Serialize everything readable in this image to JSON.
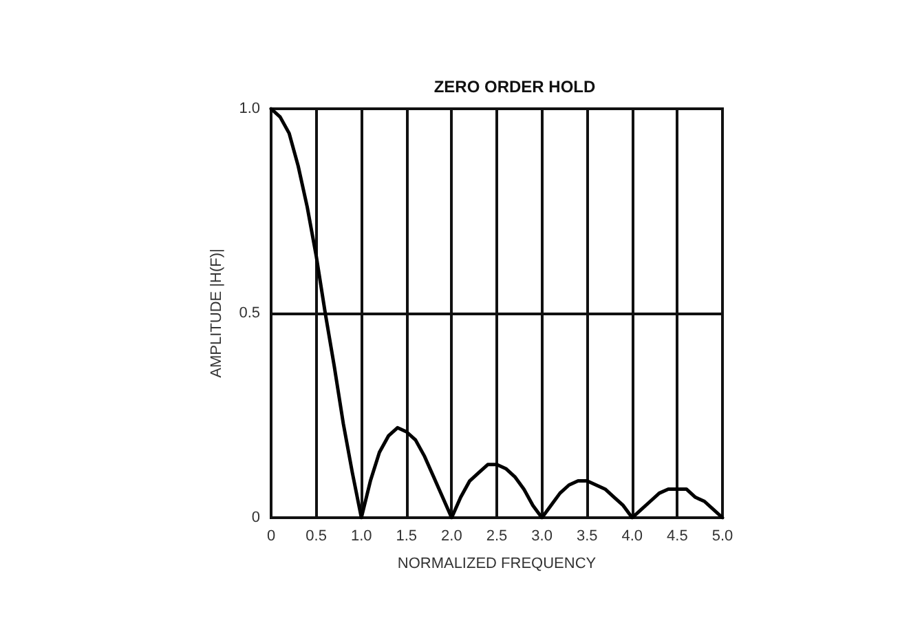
{
  "chart_data": {
    "type": "line",
    "title": "ZERO ORDER HOLD",
    "xlabel": "NORMALIZED FREQUENCY",
    "ylabel": "AMPLITUDE |H(F)|",
    "x": [
      0,
      0.1,
      0.2,
      0.3,
      0.4,
      0.5,
      0.6,
      0.7,
      0.8,
      0.9,
      1.0,
      1.1,
      1.2,
      1.3,
      1.4,
      1.5,
      1.6,
      1.7,
      1.8,
      1.9,
      2.0,
      2.1,
      2.2,
      2.3,
      2.4,
      2.5,
      2.6,
      2.7,
      2.8,
      2.9,
      3.0,
      3.1,
      3.2,
      3.3,
      3.4,
      3.5,
      3.6,
      3.7,
      3.8,
      3.9,
      4.0,
      4.1,
      4.2,
      4.3,
      4.4,
      4.5,
      4.6,
      4.7,
      4.8,
      4.9,
      5.0
    ],
    "series": [
      {
        "color": "#000000",
        "values": [
          1.0,
          0.98,
          0.94,
          0.86,
          0.76,
          0.64,
          0.5,
          0.37,
          0.23,
          0.11,
          0,
          0.09,
          0.16,
          0.2,
          0.22,
          0.21,
          0.19,
          0.15,
          0.1,
          0.05,
          0,
          0.05,
          0.09,
          0.11,
          0.13,
          0.13,
          0.12,
          0.1,
          0.07,
          0.03,
          0,
          0.03,
          0.06,
          0.08,
          0.09,
          0.09,
          0.08,
          0.07,
          0.05,
          0.03,
          0,
          0.02,
          0.04,
          0.06,
          0.07,
          0.07,
          0.07,
          0.05,
          0.04,
          0.02,
          0
        ]
      }
    ],
    "xlim": [
      0,
      5
    ],
    "xticks": [
      0,
      {
        "value": 0.5,
        "label": "0.5"
      },
      {
        "value": 1,
        "label": "1.0"
      },
      1.5,
      {
        "value": 2,
        "label": "2.0"
      },
      2.5,
      {
        "value": 3,
        "label": "3.0"
      },
      3.5,
      {
        "value": 4,
        "label": "4.0"
      },
      4.5,
      {
        "value": 5,
        "label": "5.0"
      }
    ],
    "ylim": [
      0,
      1
    ],
    "yticks": [
      0,
      0.5,
      {
        "value": 1,
        "label": "1.0"
      }
    ],
    "grid": true,
    "marker": "none",
    "line_style": "solid"
  }
}
